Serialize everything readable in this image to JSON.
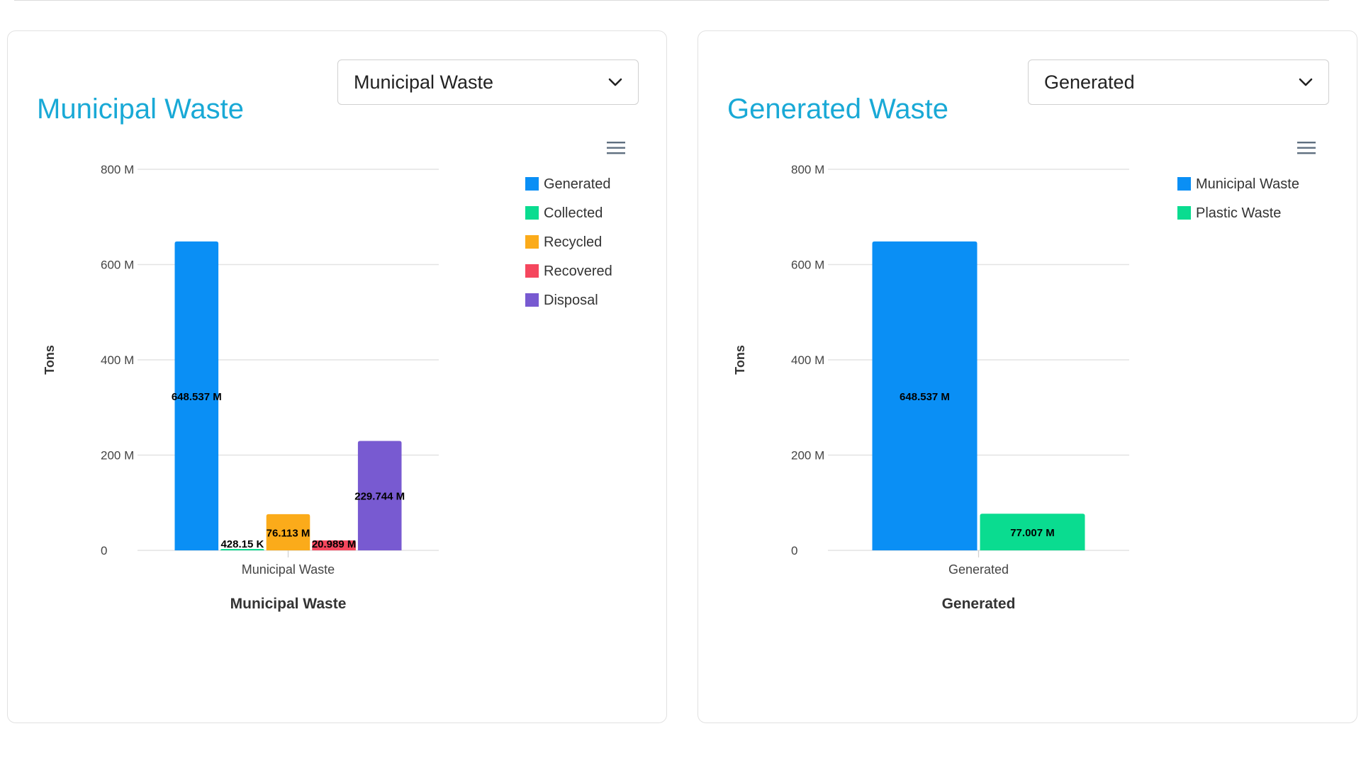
{
  "cards": [
    {
      "title": "Municipal Waste",
      "select": {
        "value": "Municipal Waste"
      },
      "menu_icon": "hamburger-menu-icon",
      "chevron_icon": "chevron-down-icon",
      "chart_data": {
        "type": "bar",
        "title": "",
        "categories": [
          "Municipal Waste"
        ],
        "xlabel": "Municipal Waste",
        "ylabel": "Tons",
        "ylim": [
          0,
          800000000
        ],
        "yticks": [
          "0",
          "200 M",
          "400 M",
          "600 M",
          "800 M"
        ],
        "grid": true,
        "legend_position": "top-right",
        "series": [
          {
            "name": "Generated",
            "values": [
              648537000
            ],
            "label": "648.537 M",
            "color": "#0a8ff5"
          },
          {
            "name": "Collected",
            "values": [
              428150
            ],
            "label": "428.15 K",
            "color": "#0adc90"
          },
          {
            "name": "Recycled",
            "values": [
              76113000
            ],
            "label": "76.113 M",
            "color": "#fbab1a"
          },
          {
            "name": "Recovered",
            "values": [
              20989000
            ],
            "label": "20.989 M",
            "color": "#f5475e"
          },
          {
            "name": "Disposal",
            "values": [
              229744000
            ],
            "label": "229.744 M",
            "color": "#785ad1"
          }
        ]
      }
    },
    {
      "title": "Generated Waste",
      "select": {
        "value": "Generated"
      },
      "menu_icon": "hamburger-menu-icon",
      "chevron_icon": "chevron-down-icon",
      "chart_data": {
        "type": "bar",
        "title": "",
        "categories": [
          "Generated"
        ],
        "xlabel": "Generated",
        "ylabel": "Tons",
        "ylim": [
          0,
          800000000
        ],
        "yticks": [
          "0",
          "200 M",
          "400 M",
          "600 M",
          "800 M"
        ],
        "grid": true,
        "legend_position": "top-right",
        "series": [
          {
            "name": "Municipal Waste",
            "values": [
              648537000
            ],
            "label": "648.537 M",
            "color": "#0a8ff5"
          },
          {
            "name": "Plastic Waste",
            "values": [
              77007000
            ],
            "label": "77.007 M",
            "color": "#0adc90"
          }
        ]
      }
    }
  ]
}
